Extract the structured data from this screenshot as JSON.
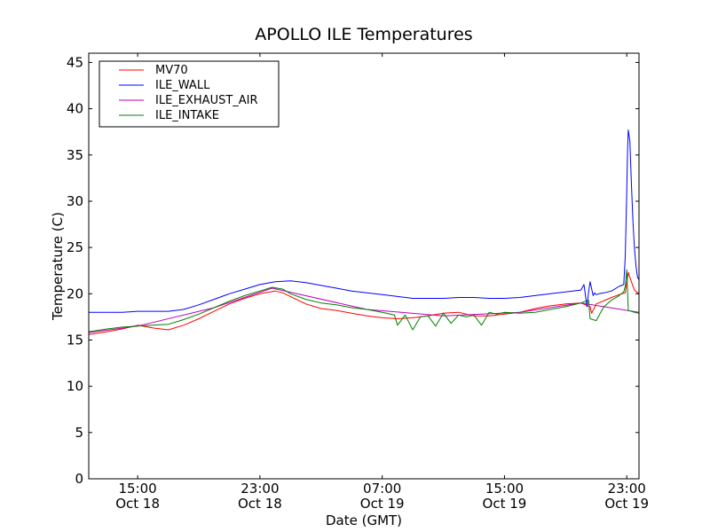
{
  "chart_data": {
    "type": "line",
    "title": "APOLLO ILE Temperatures",
    "xlabel": "Date (GMT)",
    "ylabel": "Temperature (C)",
    "xlim": [
      11.8,
      47.8
    ],
    "ylim": [
      0,
      46
    ],
    "yticks": [
      0,
      5,
      10,
      15,
      20,
      25,
      30,
      35,
      40,
      45
    ],
    "xticks": [
      {
        "t": 15,
        "time": "15:00",
        "date": "Oct 18"
      },
      {
        "t": 23,
        "time": "23:00",
        "date": "Oct 18"
      },
      {
        "t": 31,
        "time": "07:00",
        "date": "Oct 19"
      },
      {
        "t": 39,
        "time": "15:00",
        "date": "Oct 19"
      },
      {
        "t": 47,
        "time": "23:00",
        "date": "Oct 19"
      }
    ],
    "x_unit": "hours since Oct 18 00:00 GMT",
    "legend_position": "top-left",
    "series": [
      {
        "name": "MV70",
        "color": "#ff0000",
        "x": [
          11.8,
          13,
          14,
          15,
          16,
          17,
          18,
          19,
          20,
          21,
          22,
          23,
          24,
          24.5,
          25,
          26,
          27,
          28,
          29,
          30,
          31,
          32,
          33,
          34,
          35,
          36,
          37,
          38,
          39,
          40,
          41,
          42,
          43,
          44,
          44.6,
          44.7,
          44.8,
          45,
          46,
          46.5,
          46.9,
          47.1,
          47.3,
          47.5,
          47.8
        ],
        "y": [
          15.6,
          15.9,
          16.2,
          16.6,
          16.3,
          16.1,
          16.6,
          17.3,
          18.1,
          18.9,
          19.5,
          20.0,
          20.3,
          20.1,
          19.7,
          18.9,
          18.4,
          18.2,
          17.9,
          17.6,
          17.4,
          17.3,
          17.4,
          17.6,
          17.9,
          18.0,
          17.6,
          17.6,
          17.8,
          18.0,
          18.4,
          18.7,
          18.9,
          19.0,
          18.6,
          17.9,
          18.2,
          18.9,
          19.6,
          19.9,
          20.1,
          22.3,
          21.3,
          20.4,
          20.0
        ]
      },
      {
        "name": "ILE_WALL",
        "color": "#0000ff",
        "x": [
          11.8,
          13,
          14,
          15,
          16,
          17,
          18,
          19,
          20,
          21,
          22,
          23,
          24,
          25,
          26,
          27,
          28,
          29,
          30,
          31,
          32,
          33,
          34,
          35,
          36,
          37,
          38,
          39,
          40,
          41,
          42,
          43,
          44,
          44.2,
          44.4,
          44.5,
          44.6,
          44.8,
          44.9,
          45.0,
          45.2,
          45.5,
          46,
          46.5,
          46.8,
          46.9,
          47.0,
          47.05,
          47.1,
          47.2,
          47.3,
          47.4,
          47.5,
          47.6,
          47.7,
          47.8
        ],
        "y": [
          18.0,
          18.0,
          18.0,
          18.1,
          18.1,
          18.1,
          18.3,
          18.8,
          19.4,
          20.0,
          20.5,
          21.0,
          21.3,
          21.4,
          21.2,
          20.9,
          20.6,
          20.3,
          20.1,
          19.9,
          19.7,
          19.5,
          19.5,
          19.5,
          19.6,
          19.6,
          19.5,
          19.5,
          19.6,
          19.8,
          20.0,
          20.2,
          20.4,
          21.0,
          18.6,
          20.2,
          21.3,
          19.8,
          20.1,
          19.9,
          20.0,
          20.1,
          20.3,
          20.8,
          21.0,
          24.0,
          31.0,
          35.5,
          37.7,
          36.5,
          32.0,
          28.0,
          25.0,
          23.0,
          21.8,
          21.5
        ]
      },
      {
        "name": "ILE_EXHAUST_AIR",
        "color": "#bf00bf",
        "x": [
          11.8,
          15,
          20,
          23.8,
          30,
          35,
          40,
          44,
          47.8
        ],
        "y": [
          15.8,
          16.5,
          18.5,
          20.6,
          18.3,
          17.6,
          18.0,
          19.0,
          18.0
        ]
      },
      {
        "name": "ILE_INTAKE",
        "color": "#008000",
        "x": [
          11.8,
          13,
          14,
          15,
          16,
          17,
          18,
          19,
          20,
          21,
          22,
          23,
          23.8,
          24.5,
          25,
          26,
          27,
          28,
          29,
          30,
          31,
          31.8,
          32,
          32.5,
          33,
          33.5,
          34,
          34.5,
          35,
          35.5,
          36,
          36.5,
          37,
          37.5,
          38,
          38.5,
          39,
          40,
          41,
          42,
          43,
          44,
          44.5,
          44.6,
          45,
          45.5,
          46,
          46.5,
          46.8,
          46.9,
          47.0,
          47.1,
          47.3,
          47.5,
          47.8
        ],
        "y": [
          15.9,
          16.2,
          16.4,
          16.5,
          16.6,
          16.7,
          17.2,
          17.8,
          18.5,
          19.2,
          19.8,
          20.3,
          20.7,
          20.5,
          20.0,
          19.4,
          19.0,
          18.8,
          18.5,
          18.3,
          18.0,
          17.7,
          16.6,
          17.7,
          16.1,
          17.5,
          17.6,
          16.5,
          17.9,
          16.8,
          17.7,
          17.5,
          17.7,
          16.6,
          18.0,
          17.8,
          18.0,
          17.9,
          18.0,
          18.3,
          18.6,
          19.0,
          19.3,
          17.3,
          17.1,
          18.6,
          19.3,
          19.8,
          20.2,
          20.8,
          22.6,
          18.2,
          18.1,
          18.0,
          17.9
        ]
      }
    ]
  }
}
